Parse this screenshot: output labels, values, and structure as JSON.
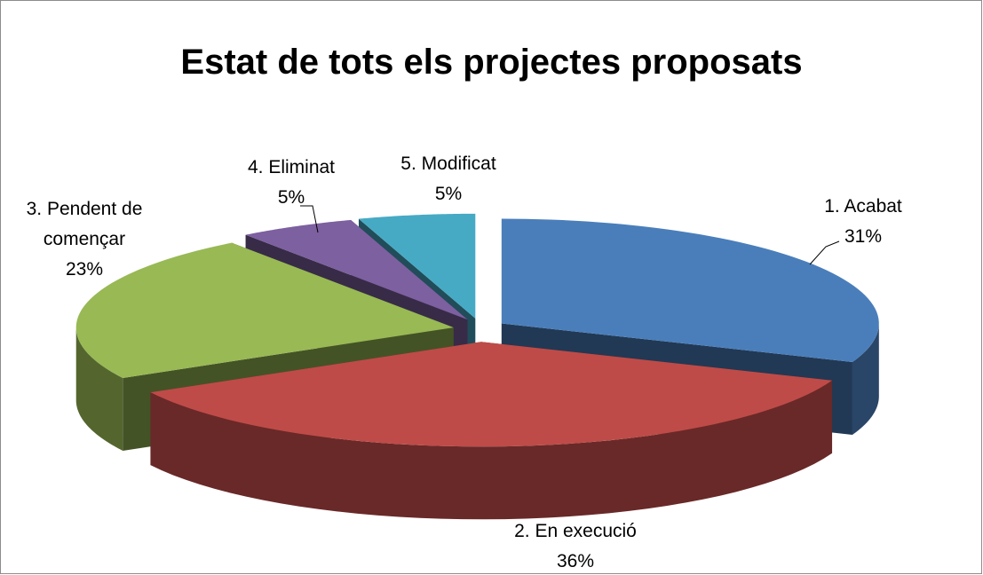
{
  "chart_data": {
    "type": "pie",
    "title": "Estat de tots els projectes proposats",
    "categories": [
      "1. Acabat",
      "2. En execució",
      "3. Pendent de començar",
      "4. Eliminat",
      "5. Modificat"
    ],
    "values": [
      31,
      36,
      23,
      5,
      5
    ],
    "value_labels": [
      "31%",
      "36%",
      "23%",
      "5%",
      "5%"
    ],
    "colors": [
      "#4a7ebb",
      "#be4b48",
      "#98b954",
      "#7d60a0",
      "#46aac5"
    ]
  }
}
